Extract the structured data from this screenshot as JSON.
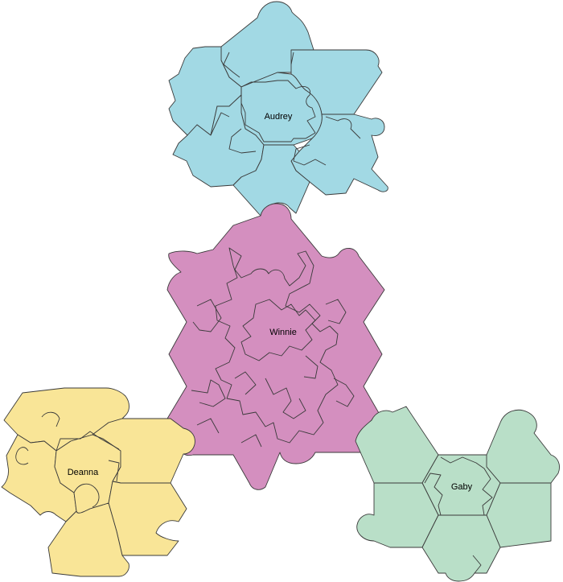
{
  "colors": {
    "audrey": "#a2d9e4",
    "winnie": "#d48fbf",
    "deanna": "#f9e597",
    "gaby": "#b9dfc8",
    "outline": "#3a3a3a",
    "background": "#ffffff"
  },
  "clusters": {
    "audrey": {
      "name": "Audrey"
    },
    "winnie": {
      "name": "Winnie"
    },
    "deanna": {
      "name": "Deanna"
    },
    "gaby": {
      "name": "Gaby"
    }
  }
}
